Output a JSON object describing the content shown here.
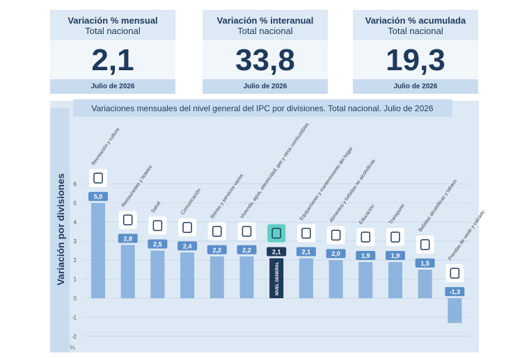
{
  "cards": [
    {
      "title": "Variación % mensual",
      "subtitle": "Total nacional",
      "value": "2,1",
      "date": "Julio de 2026"
    },
    {
      "title": "Variación % interanual",
      "subtitle": "Total nacional",
      "value": "33,8",
      "date": "Julio de 2026"
    },
    {
      "title": "Variación % acumulada",
      "subtitle": "Total nacional",
      "value": "19,3",
      "date": "Julio de 2026"
    }
  ],
  "chart_data": {
    "type": "bar",
    "title": "Variaciones mensuales del nivel general del IPC por divisiones. Total nacional. Julio de 2026",
    "y_label": "Variación por divisiones",
    "unit": "%",
    "categories": [
      "Recreación y cultura",
      "Restaurantes y hoteles",
      "Salud",
      "Comunicación",
      "Bienes y servicios varios",
      "Vivienda, agua, electricidad, gas y otros combustibles",
      "NIVEL GENERAL",
      "Equipamiento y mantenimiento del hogar",
      "Alimentos y bebidas no alcohólicas",
      "Educación",
      "Transporte",
      "Bebidas alcohólicas y tabaco",
      "Prendas de vestir y calzado"
    ],
    "values": [
      5.0,
      2.8,
      2.5,
      2.4,
      2.2,
      2.2,
      2.1,
      2.1,
      2.0,
      1.9,
      1.9,
      1.5,
      -1.3
    ],
    "value_labels": [
      "5,0",
      "2,8",
      "2,5",
      "2,4",
      "2,2",
      "2,2",
      "2,1",
      "2,1",
      "2,0",
      "1,9",
      "1,9",
      "1,5",
      "-1,3"
    ],
    "color": "#8db4de",
    "colors": [
      "#8db4de",
      "#8db4de",
      "#8db4de",
      "#8db4de",
      "#8db4de",
      "#8db4de",
      "#1f3a5a",
      "#8db4de",
      "#8db4de",
      "#8db4de",
      "#8db4de",
      "#8db4de",
      "#8db4de"
    ],
    "ylim": [
      -2.3,
      6.5
    ],
    "yticks": [
      -2,
      -1,
      0,
      1,
      2,
      3,
      4,
      5,
      6
    ],
    "grid": true
  }
}
